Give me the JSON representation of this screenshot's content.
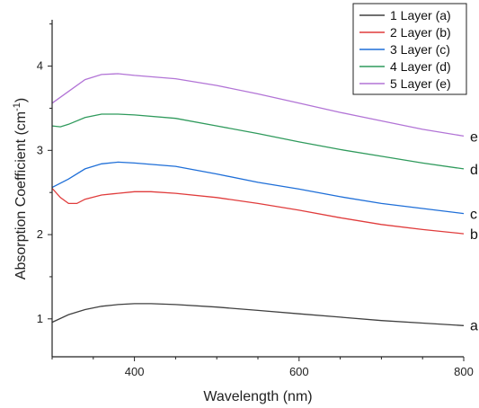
{
  "chart_data": {
    "type": "line",
    "xlabel": "Wavelength (nm)",
    "ylabel_main": "Absorption Coefficient (cm",
    "ylabel_sup": "-1",
    "ylabel_close": ")",
    "xlim": [
      300,
      800
    ],
    "ylim": [
      0.55,
      4.55
    ],
    "xticks": [
      400,
      600,
      800
    ],
    "yticks": [
      1,
      2,
      3,
      4
    ],
    "grid": false,
    "legend_position": "top-right",
    "series": [
      {
        "name": "1 Layer (a)",
        "end_label": "a",
        "color": "#404040",
        "points": [
          [
            300,
            0.96
          ],
          [
            320,
            1.05
          ],
          [
            340,
            1.11
          ],
          [
            360,
            1.15
          ],
          [
            380,
            1.17
          ],
          [
            400,
            1.18
          ],
          [
            420,
            1.18
          ],
          [
            450,
            1.17
          ],
          [
            500,
            1.14
          ],
          [
            550,
            1.1
          ],
          [
            600,
            1.06
          ],
          [
            650,
            1.02
          ],
          [
            700,
            0.98
          ],
          [
            750,
            0.95
          ],
          [
            800,
            0.92
          ]
        ]
      },
      {
        "name": "2 Layer (b)",
        "end_label": "b",
        "color": "#e03c3c",
        "points": [
          [
            300,
            2.55
          ],
          [
            310,
            2.44
          ],
          [
            320,
            2.37
          ],
          [
            330,
            2.37
          ],
          [
            340,
            2.42
          ],
          [
            360,
            2.47
          ],
          [
            380,
            2.49
          ],
          [
            400,
            2.51
          ],
          [
            420,
            2.51
          ],
          [
            450,
            2.49
          ],
          [
            500,
            2.44
          ],
          [
            550,
            2.37
          ],
          [
            600,
            2.29
          ],
          [
            650,
            2.2
          ],
          [
            700,
            2.12
          ],
          [
            750,
            2.06
          ],
          [
            800,
            2.01
          ]
        ]
      },
      {
        "name": "3 Layer (c)",
        "end_label": "c",
        "color": "#1f6fd8",
        "points": [
          [
            300,
            2.56
          ],
          [
            320,
            2.66
          ],
          [
            340,
            2.78
          ],
          [
            360,
            2.84
          ],
          [
            380,
            2.86
          ],
          [
            400,
            2.85
          ],
          [
            450,
            2.81
          ],
          [
            500,
            2.72
          ],
          [
            550,
            2.62
          ],
          [
            600,
            2.54
          ],
          [
            650,
            2.45
          ],
          [
            700,
            2.37
          ],
          [
            750,
            2.31
          ],
          [
            800,
            2.25
          ]
        ]
      },
      {
        "name": "4 Layer (d)",
        "end_label": "d",
        "color": "#2f9a5c",
        "points": [
          [
            300,
            3.29
          ],
          [
            310,
            3.28
          ],
          [
            320,
            3.31
          ],
          [
            340,
            3.39
          ],
          [
            360,
            3.43
          ],
          [
            380,
            3.43
          ],
          [
            400,
            3.42
          ],
          [
            450,
            3.38
          ],
          [
            500,
            3.29
          ],
          [
            550,
            3.2
          ],
          [
            600,
            3.1
          ],
          [
            650,
            3.01
          ],
          [
            700,
            2.93
          ],
          [
            750,
            2.85
          ],
          [
            800,
            2.78
          ]
        ]
      },
      {
        "name": "5 Layer (e)",
        "end_label": "e",
        "color": "#b274d6",
        "points": [
          [
            300,
            3.56
          ],
          [
            320,
            3.7
          ],
          [
            340,
            3.84
          ],
          [
            360,
            3.9
          ],
          [
            380,
            3.91
          ],
          [
            400,
            3.89
          ],
          [
            450,
            3.85
          ],
          [
            500,
            3.77
          ],
          [
            550,
            3.67
          ],
          [
            600,
            3.56
          ],
          [
            650,
            3.45
          ],
          [
            700,
            3.35
          ],
          [
            750,
            3.25
          ],
          [
            800,
            3.17
          ]
        ]
      }
    ]
  }
}
